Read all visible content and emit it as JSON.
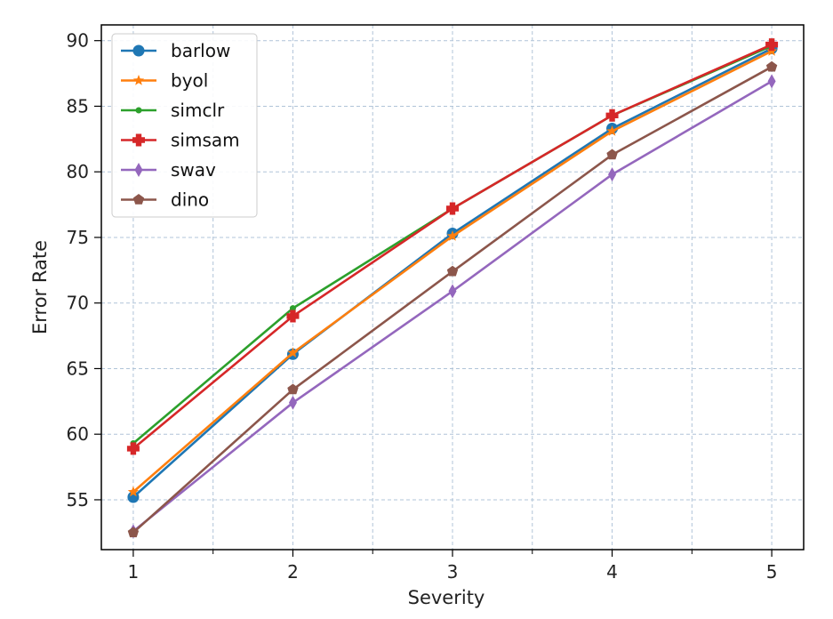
{
  "chart_data": {
    "type": "line",
    "xlabel": "Severity",
    "ylabel": "Error Rate",
    "x": [
      1,
      2,
      3,
      4,
      5
    ],
    "xlim": [
      0.8,
      5.2
    ],
    "ylim": [
      51.2,
      91.2
    ],
    "xticks": [
      1,
      2,
      3,
      4,
      5
    ],
    "x_minor_ticks": [
      1.5,
      2.5,
      3.5,
      4.5
    ],
    "yticks": [
      55,
      60,
      65,
      70,
      75,
      80,
      85,
      90
    ],
    "grid": true,
    "legend_position": "upper-left",
    "series": [
      {
        "name": "barlow",
        "color": "#1f77b4",
        "marker": "circle",
        "values": [
          55.2,
          66.1,
          75.3,
          83.3,
          89.4
        ]
      },
      {
        "name": "byol",
        "color": "#ff7f0e",
        "marker": "star",
        "values": [
          55.6,
          66.2,
          75.1,
          83.1,
          89.2
        ]
      },
      {
        "name": "simclr",
        "color": "#2ca02c",
        "marker": "dot",
        "values": [
          59.3,
          69.6,
          77.2,
          84.3,
          89.6
        ]
      },
      {
        "name": "simsam",
        "color": "#d62728",
        "marker": "plus-filled",
        "values": [
          58.9,
          69.0,
          77.2,
          84.3,
          89.7
        ]
      },
      {
        "name": "swav",
        "color": "#9467bd",
        "marker": "thin-diamond",
        "values": [
          52.6,
          62.4,
          70.9,
          79.8,
          86.9
        ]
      },
      {
        "name": "dino",
        "color": "#8c564b",
        "marker": "pentagon",
        "values": [
          52.5,
          63.4,
          72.4,
          81.3,
          88.0
        ]
      }
    ]
  }
}
